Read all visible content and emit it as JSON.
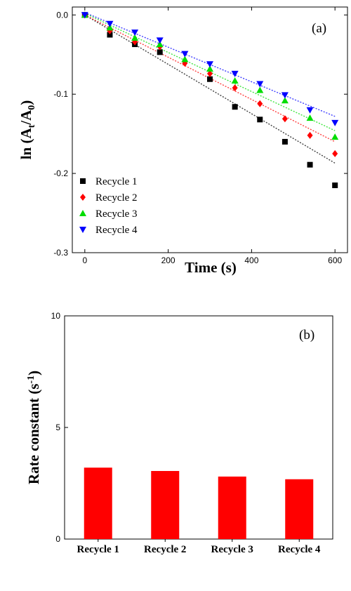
{
  "chart_data": [
    {
      "panel": "(a)",
      "type": "scatter",
      "xlabel": "Time (s)",
      "ylabel": "ln (At/A0)",
      "xlim": [
        -30,
        630
      ],
      "ylim": [
        -0.3,
        0.01
      ],
      "x_ticks": [
        0,
        200,
        400,
        600
      ],
      "y_ticks": [
        0.0,
        -0.1,
        -0.2,
        -0.3
      ],
      "x_tick_labels": [
        "0",
        "200",
        "400",
        "600"
      ],
      "y_tick_labels": [
        "0.0",
        "-0.1",
        "-0.2",
        "-0.3"
      ],
      "legend_position": "bottom-left",
      "series": [
        {
          "name": "Recycle 1",
          "marker": "square",
          "color": "#000000",
          "x": [
            0,
            60,
            120,
            180,
            300,
            360,
            420,
            480,
            540,
            600
          ],
          "y": [
            0.0,
            -0.025,
            -0.037,
            -0.047,
            -0.081,
            -0.116,
            -0.132,
            -0.16,
            -0.189,
            -0.215
          ],
          "fit": [
            [
              0,
              0.0
            ],
            [
              600,
              -0.187
            ]
          ]
        },
        {
          "name": "Recycle 2",
          "marker": "diamond",
          "color": "#ff0000",
          "x": [
            0,
            60,
            120,
            180,
            240,
            300,
            360,
            420,
            480,
            540,
            600
          ],
          "y": [
            0.0,
            -0.02,
            -0.034,
            -0.04,
            -0.061,
            -0.074,
            -0.092,
            -0.112,
            -0.131,
            -0.152,
            -0.175
          ],
          "fit": [
            [
              0,
              0.0
            ],
            [
              600,
              -0.16
            ]
          ]
        },
        {
          "name": "Recycle 3",
          "marker": "triangle-up",
          "color": "#00dd00",
          "x": [
            0,
            60,
            120,
            180,
            240,
            300,
            360,
            420,
            480,
            540,
            600
          ],
          "y": [
            0.0,
            -0.016,
            -0.029,
            -0.037,
            -0.056,
            -0.068,
            -0.083,
            -0.095,
            -0.108,
            -0.13,
            -0.154
          ],
          "fit": [
            [
              0,
              0.002
            ],
            [
              600,
              -0.146
            ]
          ]
        },
        {
          "name": "Recycle 4",
          "marker": "triangle-down",
          "color": "#0000ff",
          "x": [
            0,
            60,
            120,
            180,
            240,
            300,
            360,
            420,
            480,
            540,
            600
          ],
          "y": [
            0.0,
            -0.011,
            -0.022,
            -0.032,
            -0.049,
            -0.062,
            -0.074,
            -0.087,
            -0.101,
            -0.12,
            -0.136
          ],
          "fit": [
            [
              0,
              0.003
            ],
            [
              600,
              -0.128
            ]
          ]
        }
      ]
    },
    {
      "panel": "(b)",
      "type": "bar",
      "ylabel": "Rate constant (s-1)",
      "ylim": [
        0,
        10
      ],
      "y_ticks": [
        0,
        5,
        10
      ],
      "y_tick_labels": [
        "0",
        "5",
        "10"
      ],
      "categories": [
        "Recycle 1",
        "Recycle 2",
        "Recycle 3",
        "Recycle 4"
      ],
      "values": [
        3.2,
        3.05,
        2.8,
        2.68
      ],
      "bar_color": "#ff0000"
    }
  ],
  "text": {
    "panel_a_tag": "(a)",
    "panel_b_tag": "(b)",
    "a_xlabel": "Time (s)",
    "a_ylabel_main": "ln (A",
    "a_ylabel_sub1": "t",
    "a_ylabel_mid": "/A",
    "a_ylabel_sub2": "0",
    "a_ylabel_end": ")",
    "b_ylabel_main": "Rate constant (s",
    "b_ylabel_sup": "-1",
    "b_ylabel_end": ")"
  }
}
